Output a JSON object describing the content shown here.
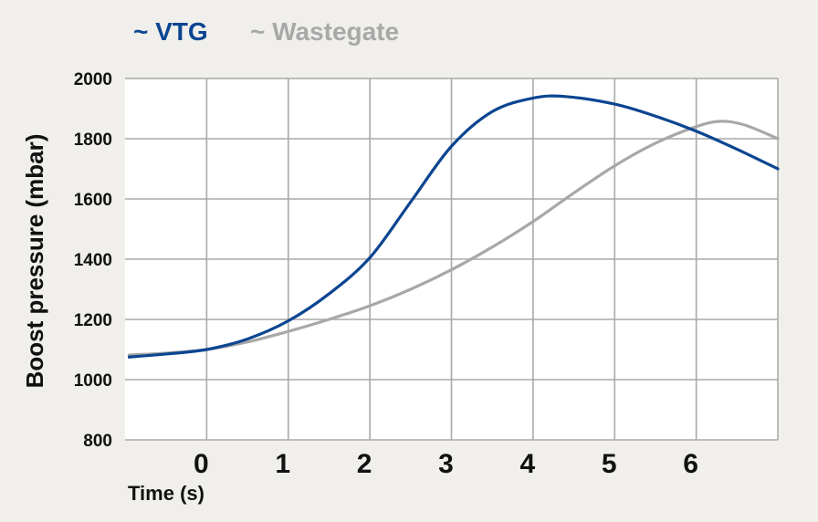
{
  "chart_data": {
    "type": "line",
    "xlabel": "Time (s)",
    "ylabel": "Boost pressure (mbar)",
    "xlim": [
      -1.0,
      7.0
    ],
    "ylim": [
      800,
      2000
    ],
    "xticks": [
      "0",
      "1",
      "2",
      "3",
      "4",
      "5",
      "6"
    ],
    "yticks": [
      "800",
      "1000",
      "1200",
      "1400",
      "1600",
      "1800",
      "2000"
    ],
    "grid": true,
    "legend_position": "top",
    "series": [
      {
        "name": "~ VTG",
        "color": "#0b4591",
        "x": [
          -0.95,
          -0.5,
          0.0,
          0.5,
          1.0,
          1.5,
          2.0,
          2.5,
          3.0,
          3.5,
          4.0,
          4.4,
          5.0,
          5.5,
          6.0,
          6.5,
          7.0
        ],
        "y": [
          1075,
          1085,
          1100,
          1135,
          1195,
          1285,
          1405,
          1590,
          1775,
          1890,
          1935,
          1940,
          1915,
          1875,
          1825,
          1765,
          1700
        ]
      },
      {
        "name": "~ Wastegate",
        "color": "#a8a8a8",
        "x": [
          -0.95,
          -0.5,
          0.0,
          0.5,
          1.0,
          1.5,
          2.0,
          2.5,
          3.0,
          3.5,
          4.0,
          4.5,
          5.0,
          5.5,
          6.0,
          6.3,
          6.6,
          7.0
        ],
        "y": [
          1082,
          1088,
          1100,
          1125,
          1160,
          1200,
          1245,
          1300,
          1365,
          1440,
          1525,
          1620,
          1710,
          1785,
          1840,
          1858,
          1845,
          1800
        ]
      }
    ]
  }
}
